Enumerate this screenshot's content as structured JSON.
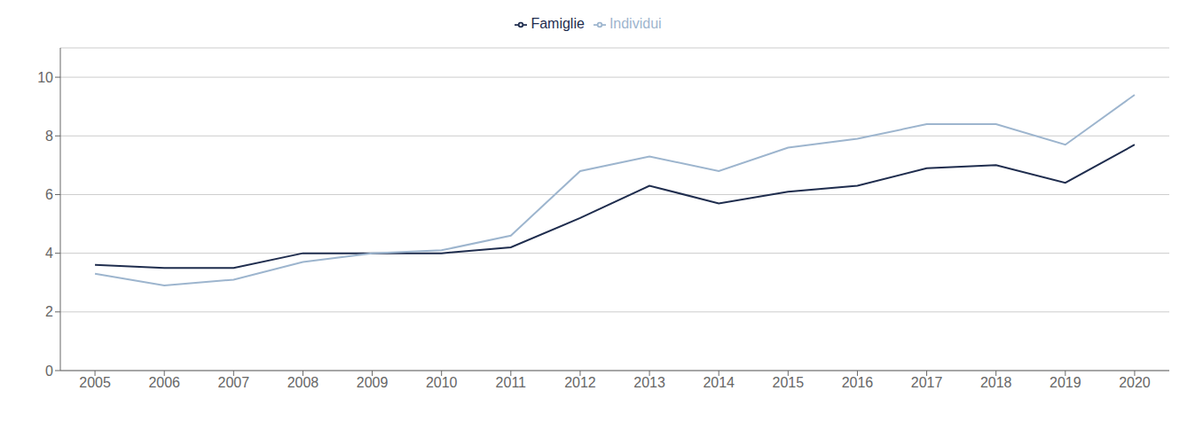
{
  "chart_data": {
    "type": "line",
    "x": [
      2005,
      2006,
      2007,
      2008,
      2009,
      2010,
      2011,
      2012,
      2013,
      2014,
      2015,
      2016,
      2017,
      2018,
      2019,
      2020
    ],
    "xlim": [
      2004.5,
      2020.5
    ],
    "xticks": [
      2005,
      2006,
      2007,
      2008,
      2009,
      2010,
      2011,
      2012,
      2013,
      2014,
      2015,
      2016,
      2017,
      2018,
      2019,
      2020
    ],
    "ylim": [
      0,
      11
    ],
    "yticks": [
      0,
      2,
      4,
      6,
      8,
      10
    ],
    "series": [
      {
        "name": "Famiglie",
        "color": "#1f2d4e",
        "values": [
          3.6,
          3.5,
          3.5,
          4.0,
          4.0,
          4.0,
          4.2,
          5.2,
          6.3,
          5.7,
          6.1,
          6.3,
          6.9,
          7.0,
          6.4,
          7.7
        ]
      },
      {
        "name": "Individui",
        "color": "#9db5ce",
        "values": [
          3.3,
          2.9,
          3.1,
          3.7,
          4.0,
          4.1,
          4.6,
          6.8,
          7.3,
          6.8,
          7.6,
          7.9,
          8.4,
          8.4,
          7.7,
          9.4
        ]
      }
    ],
    "grid": "y",
    "legend": "top"
  }
}
